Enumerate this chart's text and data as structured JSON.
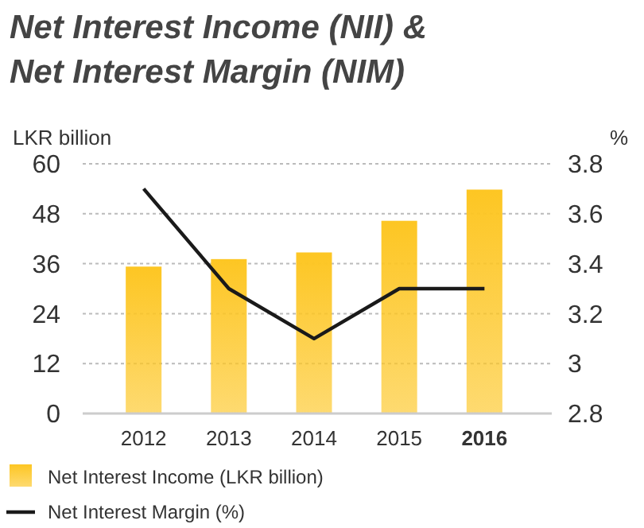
{
  "chart_data": {
    "type": "bar",
    "title": "Net Interest Income (NII) &\nNet Interest Margin (NIM)",
    "ylabel": "LKR billion",
    "y2label": "%",
    "categories": [
      "2012",
      "2013",
      "2014",
      "2015",
      "2016"
    ],
    "series": [
      {
        "name": "Net Interest Income (LKR billion)",
        "color": "#fdc623",
        "values": [
          35.3,
          37.1,
          38.7,
          46.3,
          53.8
        ]
      },
      {
        "name": "Net Interest Margin (%)",
        "type": "line",
        "axis": "y2",
        "color": "#1a1a1a",
        "values": [
          3.7,
          3.3,
          3.1,
          3.3,
          3.3
        ]
      }
    ],
    "ylim": [
      0,
      60
    ],
    "yticks": [
      0,
      12,
      24,
      36,
      48,
      60
    ],
    "y2lim": [
      2.8,
      3.8
    ],
    "y2ticks": [
      2.8,
      3,
      3.2,
      3.4,
      3.6,
      3.8
    ],
    "grid": "y",
    "legend": "bottom",
    "marker": "none",
    "line_style": "solid"
  }
}
